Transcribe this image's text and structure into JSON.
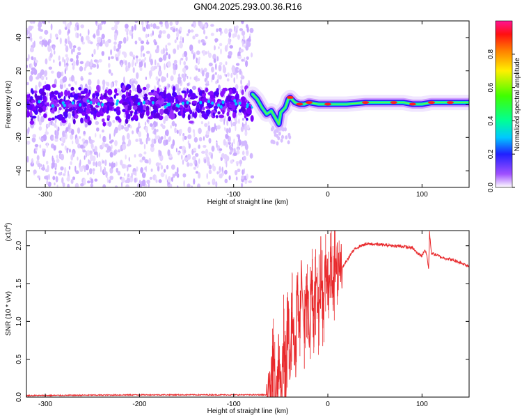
{
  "title": "GN04.2025.293.00.36.R16",
  "chart_data": [
    {
      "type": "heatmap",
      "name": "spectrogram",
      "xlabel": "Height of straight line (km)",
      "ylabel": "Frequency (Hz)",
      "xlim": [
        -320,
        150
      ],
      "ylim": [
        -50,
        50
      ],
      "x_ticks": [
        -300,
        -200,
        -100,
        0,
        100
      ],
      "y_ticks": [
        -40,
        -20,
        0,
        20,
        40
      ],
      "x_tick_labels": [
        "-300",
        "-200",
        "-100",
        "0",
        "100"
      ],
      "y_tick_labels": [
        "-40",
        "-20",
        "0",
        "20",
        "40"
      ],
      "noise_region_x": [
        -320,
        -80
      ],
      "signal_track": {
        "x": [
          -80,
          -75,
          -70,
          -65,
          -60,
          -55,
          -52,
          -50,
          -45,
          -42,
          -40,
          -35,
          -30,
          -25,
          -20,
          -10,
          0,
          20,
          40,
          60,
          70,
          80,
          90,
          100,
          110,
          120,
          130,
          150
        ],
        "freq": [
          6,
          3,
          -2,
          -6,
          -4,
          -9,
          -12,
          -5,
          -2,
          3,
          4,
          1,
          0,
          0,
          1,
          0,
          0,
          0,
          1,
          1,
          1,
          1,
          0,
          0,
          1,
          1,
          1,
          1
        ]
      },
      "colorbar": {
        "label": "Normalized spectral amplitude",
        "range": [
          0,
          1
        ],
        "ticks": [
          0.0,
          0.2,
          0.4,
          0.6,
          0.8
        ],
        "tick_labels": [
          "0.0",
          "0.2",
          "0.4",
          "0.6",
          "0.8"
        ]
      }
    },
    {
      "type": "line",
      "name": "snr",
      "xlabel": "Height of straight line (km)",
      "ylabel": "SNR (10 * v/v)",
      "y_multiplier": "(x10",
      "y_multiplier_exp": "4",
      "y_multiplier_close": ")",
      "xlim": [
        -320,
        150
      ],
      "ylim": [
        0,
        2.2
      ],
      "x_ticks": [
        -300,
        -200,
        -100,
        0,
        100
      ],
      "y_ticks": [
        0.0,
        0.5,
        1.0,
        1.5,
        2.0
      ],
      "x_tick_labels": [
        "-300",
        "-200",
        "-100",
        "0",
        "100"
      ],
      "y_tick_labels": [
        "0.0",
        "0.5",
        "1.0",
        "1.5",
        "2.0"
      ],
      "color": "#e8282b",
      "series": [
        {
          "name": "SNR",
          "x": [
            -320,
            -200,
            -100,
            -65,
            -60,
            -58,
            -55,
            -52,
            -50,
            -47,
            -45,
            -42,
            -40,
            -38,
            -35,
            -32,
            -30,
            -28,
            -25,
            -22,
            -20,
            -17,
            -15,
            -12,
            -10,
            -7,
            -5,
            -2,
            0,
            3,
            5,
            8,
            10,
            13,
            15,
            20,
            25,
            30,
            35,
            40,
            50,
            60,
            70,
            80,
            90,
            95,
            100,
            103,
            105,
            107,
            108,
            110,
            115,
            120,
            130,
            140,
            150
          ],
          "y": [
            0.02,
            0.03,
            0.03,
            0.03,
            0.05,
            0.5,
            0.1,
            0.6,
            0.05,
            0.8,
            0.2,
            1.1,
            0.3,
            1.25,
            0.5,
            1.35,
            0.7,
            1.4,
            0.9,
            1.5,
            0.75,
            1.6,
            1.0,
            1.65,
            1.2,
            1.7,
            1.1,
            1.75,
            1.3,
            1.8,
            1.4,
            1.85,
            1.55,
            1.9,
            1.7,
            1.8,
            1.9,
            1.97,
            2.0,
            2.02,
            2.02,
            2.01,
            2.0,
            1.99,
            1.97,
            1.9,
            1.87,
            1.95,
            1.88,
            1.7,
            2.18,
            1.9,
            1.88,
            1.85,
            1.82,
            1.78,
            1.73
          ]
        }
      ]
    }
  ]
}
